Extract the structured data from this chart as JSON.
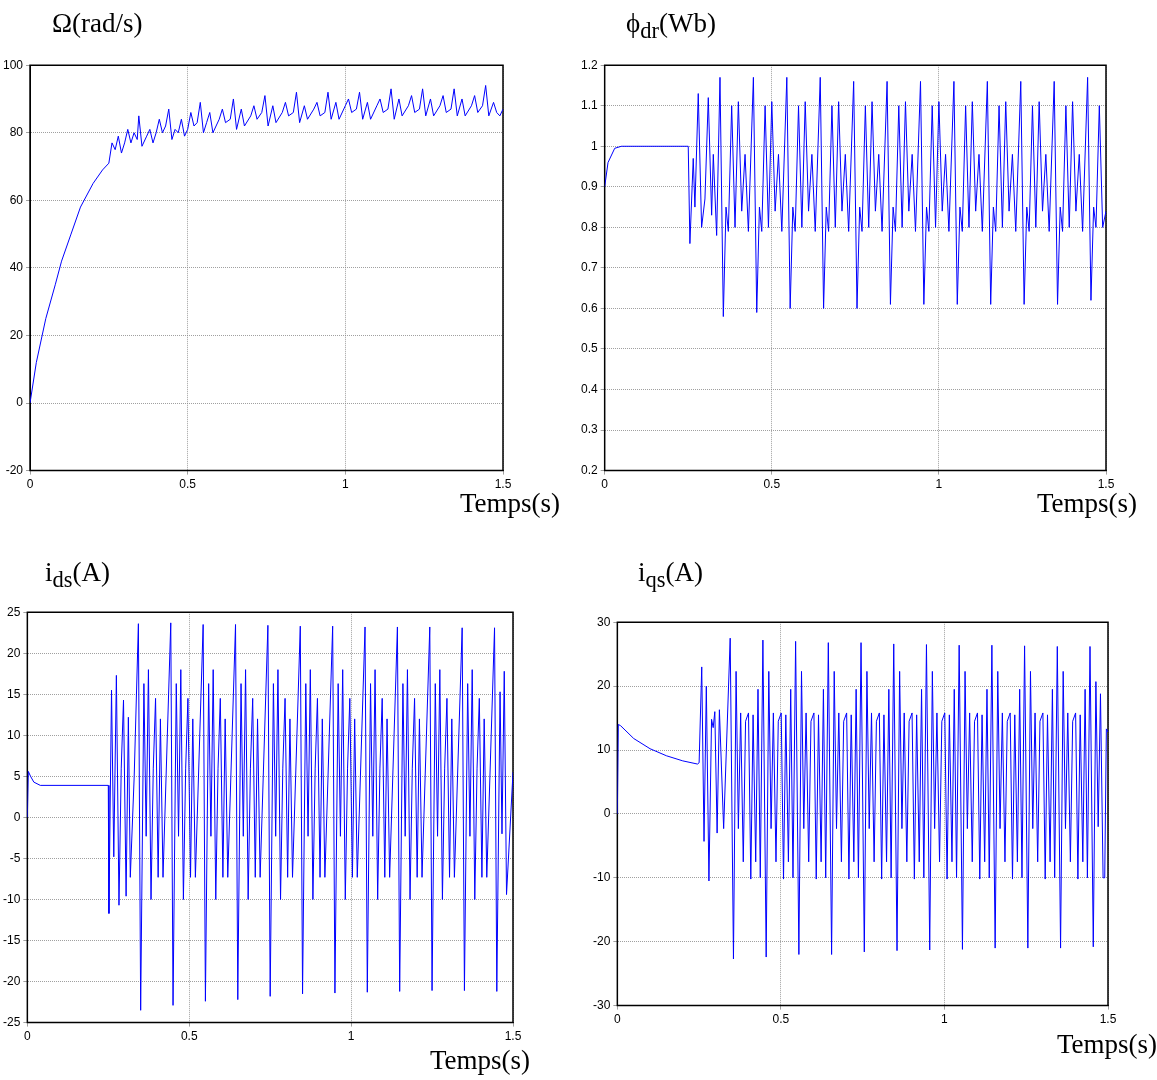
{
  "chart_data": [
    {
      "type": "line",
      "title": "Ω(rad/s)",
      "xlabel": "Temps(s)",
      "color": "#0000ff",
      "grid": true,
      "xlim": [
        0,
        1.5
      ],
      "xticks": [
        0,
        0.5,
        1,
        1.5
      ],
      "ylim": [
        -20,
        100
      ],
      "yticks": [
        -20,
        0,
        20,
        40,
        60,
        80,
        100
      ],
      "x": [
        0,
        0.02,
        0.05,
        0.08,
        0.1,
        0.13,
        0.16,
        0.2,
        0.23,
        0.25,
        0.26,
        0.27,
        0.28,
        0.29,
        0.3,
        0.31,
        0.32,
        0.33,
        0.34,
        0.345,
        0.355,
        0.37,
        0.38,
        0.39,
        0.4,
        0.41,
        0.42,
        0.43,
        0.44,
        0.45,
        0.46,
        0.47,
        0.48,
        0.49,
        0.5,
        0.51,
        0.52,
        0.53,
        0.54,
        0.55,
        0.56,
        0.57,
        0.58,
        0.6,
        0.61,
        0.62,
        0.635,
        0.645,
        0.655,
        0.67,
        0.68,
        0.7,
        0.71,
        0.72,
        0.735,
        0.745,
        0.755,
        0.77,
        0.78,
        0.8,
        0.81,
        0.82,
        0.835,
        0.845,
        0.855,
        0.87,
        0.88,
        0.9,
        0.91,
        0.92,
        0.935,
        0.945,
        0.955,
        0.97,
        0.98,
        1,
        1.01,
        1.02,
        1.035,
        1.045,
        1.055,
        1.07,
        1.08,
        1.1,
        1.11,
        1.12,
        1.135,
        1.145,
        1.155,
        1.17,
        1.18,
        1.2,
        1.21,
        1.22,
        1.235,
        1.245,
        1.255,
        1.27,
        1.28,
        1.3,
        1.31,
        1.32,
        1.335,
        1.345,
        1.355,
        1.37,
        1.38,
        1.4,
        1.41,
        1.42,
        1.435,
        1.445,
        1.455,
        1.47,
        1.48,
        1.49,
        1.5
      ],
      "values": [
        0,
        12,
        25,
        35,
        42,
        50,
        58,
        65,
        69,
        71,
        77,
        75,
        79,
        74,
        77,
        81,
        77,
        80,
        78,
        85,
        76,
        79,
        81,
        77,
        80,
        84,
        80,
        82,
        87,
        78,
        81,
        80,
        84,
        79,
        81,
        86,
        82,
        83,
        89,
        80,
        83,
        86,
        80,
        84,
        87,
        83,
        84,
        90,
        81,
        87,
        82,
        85,
        88,
        84,
        86,
        91,
        82,
        88,
        83,
        86,
        89,
        85,
        86,
        92,
        83,
        88,
        84,
        87,
        89,
        85,
        86,
        92,
        84,
        89,
        84,
        88,
        90,
        86,
        87,
        92,
        84,
        89,
        84,
        88,
        90,
        86,
        87,
        93,
        84,
        90,
        85,
        88,
        91,
        86,
        87,
        93,
        85,
        90,
        85,
        88,
        91,
        86,
        87,
        93,
        85,
        90,
        85,
        88,
        91,
        86,
        88,
        94,
        85,
        89,
        86,
        85,
        87
      ]
    },
    {
      "type": "line",
      "title": "ϕ$_{dr}$(Wb)",
      "xlabel": "Temps(s)",
      "color": "#0000ff",
      "grid": true,
      "xlim": [
        0,
        1.5
      ],
      "xticks": [
        0,
        0.5,
        1,
        1.5
      ],
      "ylim": [
        0.2,
        1.2
      ],
      "yticks": [
        0.2,
        0.3,
        0.4,
        0.5,
        0.6,
        0.7,
        0.8,
        0.9,
        1,
        1.1,
        1.2
      ],
      "x": [
        0,
        0.01,
        0.03,
        0.05,
        0.25,
        0.255,
        0.265,
        0.27,
        0.28,
        0.29,
        0.3,
        0.31,
        0.32,
        0.325,
        0.335,
        0.345,
        0.355,
        0.363,
        0.37,
        0.38,
        0.39,
        0.4,
        0.41,
        0.42,
        0.43,
        0.445,
        0.455,
        0.463,
        0.47,
        0.48,
        0.49,
        0.5,
        0.51,
        0.52,
        0.53,
        0.545,
        0.555,
        0.563,
        0.57,
        0.58,
        0.59,
        0.6,
        0.61,
        0.62,
        0.63,
        0.645,
        0.655,
        0.663,
        0.67,
        0.68,
        0.69,
        0.7,
        0.71,
        0.72,
        0.73,
        0.745,
        0.755,
        0.763,
        0.77,
        0.78,
        0.79,
        0.8,
        0.81,
        0.82,
        0.83,
        0.845,
        0.855,
        0.863,
        0.87,
        0.88,
        0.89,
        0.9,
        0.91,
        0.92,
        0.93,
        0.945,
        0.955,
        0.963,
        0.97,
        0.98,
        0.99,
        1,
        1.01,
        1.02,
        1.03,
        1.045,
        1.055,
        1.063,
        1.07,
        1.08,
        1.09,
        1.1,
        1.11,
        1.12,
        1.13,
        1.145,
        1.155,
        1.163,
        1.17,
        1.18,
        1.19,
        1.2,
        1.21,
        1.22,
        1.23,
        1.245,
        1.255,
        1.263,
        1.27,
        1.28,
        1.29,
        1.3,
        1.31,
        1.32,
        1.33,
        1.345,
        1.355,
        1.363,
        1.37,
        1.38,
        1.39,
        1.4,
        1.41,
        1.42,
        1.43,
        1.445,
        1.455,
        1.463,
        1.47,
        1.48,
        1.49,
        1.5
      ],
      "values": [
        0.9,
        0.96,
        0.995,
        1,
        1,
        0.76,
        0.97,
        0.85,
        1.13,
        0.8,
        0.87,
        1.12,
        0.83,
        0.98,
        0.78,
        1.17,
        0.58,
        0.85,
        0.79,
        1.1,
        0.8,
        1.11,
        0.84,
        0.98,
        0.79,
        1.17,
        0.59,
        0.85,
        0.79,
        1.1,
        0.8,
        1.11,
        0.84,
        0.98,
        0.79,
        1.17,
        0.6,
        0.85,
        0.79,
        1.1,
        0.8,
        1.11,
        0.84,
        0.98,
        0.79,
        1.17,
        0.6,
        0.85,
        0.79,
        1.1,
        0.8,
        1.11,
        0.84,
        0.98,
        0.79,
        1.16,
        0.6,
        0.85,
        0.79,
        1.1,
        0.8,
        1.11,
        0.84,
        0.98,
        0.79,
        1.16,
        0.61,
        0.85,
        0.79,
        1.1,
        0.8,
        1.11,
        0.84,
        0.98,
        0.79,
        1.16,
        0.61,
        0.85,
        0.79,
        1.1,
        0.8,
        1.11,
        0.84,
        0.98,
        0.79,
        1.16,
        0.61,
        0.85,
        0.79,
        1.1,
        0.8,
        1.11,
        0.84,
        0.98,
        0.79,
        1.16,
        0.61,
        0.85,
        0.79,
        1.1,
        0.8,
        1.11,
        0.84,
        0.98,
        0.79,
        1.16,
        0.61,
        0.85,
        0.79,
        1.1,
        0.8,
        1.11,
        0.84,
        0.98,
        0.79,
        1.16,
        0.61,
        0.85,
        0.79,
        1.1,
        0.8,
        1.11,
        0.84,
        0.98,
        0.79,
        1.17,
        0.62,
        0.85,
        0.8,
        1.1,
        0.8,
        0.84
      ]
    },
    {
      "type": "line",
      "title": "i$_{ds}$(A)",
      "xlabel": "Temps(s)",
      "color": "#0000ff",
      "grid": true,
      "xlim": [
        0,
        1.5
      ],
      "xticks": [
        0,
        0.5,
        1,
        1.5
      ],
      "ylim": [
        -25,
        25
      ],
      "yticks": [
        -25,
        -20,
        -15,
        -10,
        -5,
        0,
        5,
        10,
        15,
        20,
        25
      ],
      "x": [
        0,
        0.003,
        0.01,
        0.02,
        0.04,
        0.25,
        0.252,
        0.26,
        0.267,
        0.275,
        0.283,
        0.29,
        0.297,
        0.305,
        0.312,
        0.318,
        0.33,
        0.343,
        0.35,
        0.36,
        0.367,
        0.374,
        0.382,
        0.389,
        0.396,
        0.404,
        0.411,
        0.419,
        0.443,
        0.45,
        0.46,
        0.467,
        0.474,
        0.482,
        0.489,
        0.496,
        0.504,
        0.511,
        0.519,
        0.543,
        0.55,
        0.56,
        0.567,
        0.574,
        0.582,
        0.589,
        0.596,
        0.604,
        0.611,
        0.619,
        0.643,
        0.65,
        0.66,
        0.667,
        0.674,
        0.682,
        0.689,
        0.696,
        0.704,
        0.711,
        0.719,
        0.743,
        0.75,
        0.76,
        0.767,
        0.774,
        0.782,
        0.789,
        0.796,
        0.804,
        0.811,
        0.819,
        0.843,
        0.85,
        0.86,
        0.867,
        0.874,
        0.882,
        0.889,
        0.896,
        0.904,
        0.911,
        0.919,
        0.943,
        0.95,
        0.96,
        0.967,
        0.974,
        0.982,
        0.989,
        0.996,
        1.004,
        1.011,
        1.019,
        1.043,
        1.05,
        1.06,
        1.067,
        1.074,
        1.082,
        1.089,
        1.096,
        1.104,
        1.111,
        1.119,
        1.143,
        1.15,
        1.16,
        1.167,
        1.174,
        1.182,
        1.189,
        1.196,
        1.204,
        1.211,
        1.219,
        1.243,
        1.25,
        1.26,
        1.267,
        1.274,
        1.282,
        1.289,
        1.296,
        1.304,
        1.311,
        1.319,
        1.343,
        1.35,
        1.36,
        1.367,
        1.374,
        1.382,
        1.389,
        1.396,
        1.404,
        1.411,
        1.419,
        1.443,
        1.45,
        1.46,
        1.466,
        1.473,
        1.48,
        1.5
      ],
      "values": [
        0,
        5.6,
        5,
        4.3,
        3.9,
        3.9,
        -11.7,
        15.5,
        -4.8,
        17.3,
        -10.7,
        6,
        14.3,
        -9.6,
        12.2,
        -7.3,
        5,
        23.6,
        -23.5,
        16.3,
        -2.3,
        18,
        -10,
        6,
        14.5,
        -7.3,
        12,
        -7.3,
        23.7,
        -22.9,
        16.3,
        -2.3,
        18,
        -10,
        6,
        14.5,
        -7.3,
        12,
        -7.3,
        23.5,
        -22.4,
        16.3,
        -2.3,
        18,
        -10,
        6,
        14.5,
        -7.3,
        12,
        -7.3,
        23.5,
        -22.2,
        16.3,
        -2.3,
        18,
        -10,
        6,
        14.5,
        -7.3,
        12,
        -7.3,
        23.4,
        -21.8,
        16.3,
        -2.3,
        18,
        -10,
        6,
        14.5,
        -7.3,
        12,
        -7.3,
        23.3,
        -21.5,
        16.3,
        -2.3,
        18,
        -10,
        6,
        14.5,
        -7.3,
        12,
        -7.3,
        23.3,
        -21.4,
        16.3,
        -2.3,
        18,
        -10,
        6,
        14.5,
        -7.3,
        12,
        -7.3,
        23.2,
        -21.3,
        16.3,
        -2.3,
        18,
        -10,
        6,
        14.5,
        -7.3,
        12,
        -7.3,
        23.2,
        -21.2,
        16.3,
        -2.3,
        18,
        -10,
        6,
        14.5,
        -7.3,
        12,
        -7.3,
        23.2,
        -21.1,
        16.3,
        -2.3,
        18,
        -10,
        6,
        14.5,
        -7.3,
        12,
        -7.3,
        23.1,
        -21.1,
        16.3,
        -2.3,
        18,
        -10,
        6,
        14.5,
        -7.3,
        12,
        -7.3,
        23.1,
        -21.2,
        15.3,
        -2,
        17.8,
        -9.4,
        5.5
      ]
    },
    {
      "type": "line",
      "title": "i$_{qs}$(A)",
      "xlabel": "Temps(s)",
      "color": "#0000ff",
      "grid": true,
      "xlim": [
        0,
        1.5
      ],
      "xticks": [
        0,
        0.5,
        1,
        1.5
      ],
      "ylim": [
        -30,
        30
      ],
      "yticks": [
        -30,
        -20,
        -10,
        0,
        10,
        20,
        30
      ],
      "x": [
        0,
        0.003,
        0.01,
        0.05,
        0.1,
        0.15,
        0.2,
        0.245,
        0.25,
        0.258,
        0.265,
        0.272,
        0.28,
        0.288,
        0.293,
        0.298,
        0.305,
        0.312,
        0.325,
        0.345,
        0.355,
        0.363,
        0.37,
        0.377,
        0.385,
        0.392,
        0.401,
        0.408,
        0.415,
        0.423,
        0.43,
        0.437,
        0.445,
        0.455,
        0.463,
        0.47,
        0.477,
        0.485,
        0.492,
        0.501,
        0.508,
        0.515,
        0.523,
        0.53,
        0.537,
        0.545,
        0.555,
        0.563,
        0.57,
        0.577,
        0.585,
        0.592,
        0.601,
        0.608,
        0.615,
        0.623,
        0.63,
        0.637,
        0.645,
        0.655,
        0.663,
        0.67,
        0.677,
        0.685,
        0.692,
        0.701,
        0.708,
        0.715,
        0.723,
        0.73,
        0.737,
        0.745,
        0.755,
        0.763,
        0.77,
        0.777,
        0.785,
        0.792,
        0.801,
        0.808,
        0.815,
        0.823,
        0.83,
        0.837,
        0.845,
        0.855,
        0.863,
        0.87,
        0.877,
        0.885,
        0.892,
        0.901,
        0.908,
        0.915,
        0.923,
        0.93,
        0.937,
        0.945,
        0.955,
        0.963,
        0.97,
        0.977,
        0.985,
        0.992,
        1.001,
        1.008,
        1.015,
        1.023,
        1.03,
        1.037,
        1.045,
        1.055,
        1.063,
        1.07,
        1.077,
        1.085,
        1.092,
        1.101,
        1.108,
        1.115,
        1.123,
        1.13,
        1.137,
        1.145,
        1.155,
        1.163,
        1.17,
        1.177,
        1.185,
        1.192,
        1.201,
        1.208,
        1.215,
        1.223,
        1.23,
        1.237,
        1.245,
        1.255,
        1.263,
        1.27,
        1.277,
        1.285,
        1.292,
        1.301,
        1.308,
        1.315,
        1.323,
        1.33,
        1.337,
        1.345,
        1.355,
        1.363,
        1.37,
        1.377,
        1.385,
        1.392,
        1.401,
        1.408,
        1.415,
        1.423,
        1.43,
        1.437,
        1.445,
        1.455,
        1.463,
        1.47,
        1.477,
        1.485,
        1.49,
        1.495,
        1.5
      ],
      "values": [
        0,
        14,
        13.8,
        11.8,
        10.2,
        9.1,
        8.3,
        7.8,
        8,
        23,
        -4.3,
        20,
        -10.5,
        14.8,
        13.5,
        16,
        -3,
        16.3,
        -2.3,
        27.5,
        -22.7,
        22.3,
        -2.3,
        15.8,
        -7.5,
        14.5,
        15.8,
        -10.2,
        15.5,
        -7.5,
        19.5,
        -10,
        27.2,
        -22.4,
        22.3,
        -2.3,
        15.8,
        -7.5,
        14.5,
        15.8,
        -10.2,
        15.5,
        -7.5,
        19.5,
        -10,
        27,
        -22,
        22.3,
        -2.3,
        15.8,
        -7.5,
        14.5,
        15.8,
        -10.2,
        15.5,
        -7.5,
        19.5,
        -10,
        26.8,
        -22,
        22.3,
        -2.3,
        15.8,
        -7.5,
        14.5,
        15.8,
        -10.2,
        15.5,
        -7.5,
        19.5,
        -10,
        26.8,
        -21.6,
        22.3,
        -2.3,
        15.8,
        -7.5,
        14.5,
        15.8,
        -10.2,
        15.5,
        -7.5,
        19.5,
        -10,
        26.6,
        -21.4,
        22.3,
        -2.3,
        15.8,
        -7.5,
        14.5,
        15.8,
        -10.2,
        15.5,
        -7.5,
        19.5,
        -10,
        26.5,
        -21.3,
        22.3,
        -2.3,
        15.8,
        -7.5,
        14.5,
        15.8,
        -10.2,
        15.5,
        -7.5,
        19.5,
        -10,
        26.4,
        -21.2,
        22.3,
        -2.3,
        15.8,
        -7.5,
        14.5,
        15.8,
        -10.2,
        15.5,
        -7.5,
        19.5,
        -10,
        26.4,
        -21,
        22.3,
        -2.3,
        15.8,
        -7.5,
        14.5,
        15.8,
        -10.2,
        15.5,
        -7.5,
        19.5,
        -10,
        26.3,
        -21,
        22.3,
        -2.3,
        15.8,
        -7.5,
        14.5,
        15.8,
        -10.2,
        15.5,
        -7.5,
        19.5,
        -10,
        26.2,
        -21,
        22.3,
        -2.3,
        15.8,
        -7.5,
        14.5,
        15.8,
        -10.2,
        15.5,
        -7.5,
        19.5,
        -10,
        26.2,
        -20.8,
        20.7,
        -2,
        18.8,
        -10,
        -10,
        13.3,
        12.8
      ]
    }
  ]
}
